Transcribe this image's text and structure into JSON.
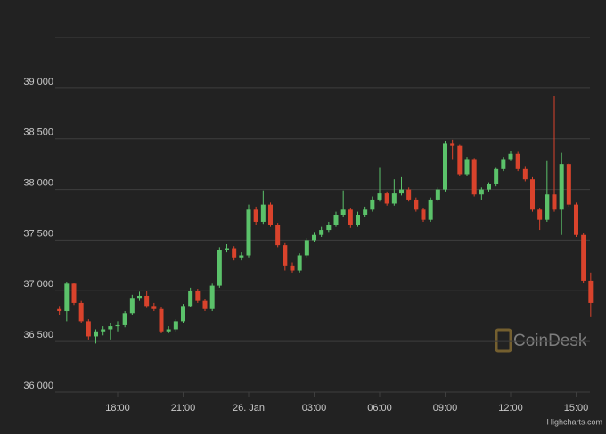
{
  "chart_data": {
    "type": "candlestick",
    "x": [
      "25. Jan 15:20",
      "25. Jan 15:40",
      "25. Jan 16:00",
      "25. Jan 16:20",
      "25. Jan 16:40",
      "25. Jan 17:00",
      "25. Jan 17:20",
      "25. Jan 17:40",
      "25. Jan 18:00",
      "25. Jan 18:20",
      "25. Jan 18:40",
      "25. Jan 19:00",
      "25. Jan 19:20",
      "25. Jan 19:40",
      "25. Jan 20:00",
      "25. Jan 20:20",
      "25. Jan 20:40",
      "25. Jan 21:00",
      "25. Jan 21:20",
      "25. Jan 21:40",
      "25. Jan 22:00",
      "25. Jan 22:20",
      "25. Jan 22:40",
      "25. Jan 23:00",
      "25. Jan 23:20",
      "25. Jan 23:40",
      "26. Jan 00:00",
      "26. Jan 00:20",
      "26. Jan 00:40",
      "26. Jan 01:00",
      "26. Jan 01:20",
      "26. Jan 01:40",
      "26. Jan 02:00",
      "26. Jan 02:20",
      "26. Jan 02:40",
      "26. Jan 03:00",
      "26. Jan 03:20",
      "26. Jan 03:40",
      "26. Jan 04:00",
      "26. Jan 04:20",
      "26. Jan 04:40",
      "26. Jan 05:00",
      "26. Jan 05:20",
      "26. Jan 05:40",
      "26. Jan 06:00",
      "26. Jan 06:20",
      "26. Jan 06:40",
      "26. Jan 07:00",
      "26. Jan 07:20",
      "26. Jan 07:40",
      "26. Jan 08:00",
      "26. Jan 08:20",
      "26. Jan 08:40",
      "26. Jan 09:00",
      "26. Jan 09:20",
      "26. Jan 09:40",
      "26. Jan 10:00",
      "26. Jan 10:20",
      "26. Jan 10:40",
      "26. Jan 11:00",
      "26. Jan 11:20",
      "26. Jan 11:40",
      "26. Jan 12:00",
      "26. Jan 12:20",
      "26. Jan 12:40",
      "26. Jan 13:00",
      "26. Jan 13:20",
      "26. Jan 13:40",
      "26. Jan 14:00",
      "26. Jan 14:20",
      "26. Jan 14:40",
      "26. Jan 15:00",
      "26. Jan 15:20",
      "26. Jan 15:40"
    ],
    "ohlc": [
      [
        36820,
        36850,
        36760,
        36800
      ],
      [
        36800,
        37090,
        36700,
        37070
      ],
      [
        37070,
        37080,
        36860,
        36880
      ],
      [
        36880,
        36900,
        36680,
        36700
      ],
      [
        36700,
        36720,
        36520,
        36550
      ],
      [
        36550,
        36620,
        36480,
        36600
      ],
      [
        36600,
        36650,
        36560,
        36620
      ],
      [
        36620,
        36680,
        36520,
        36650
      ],
      [
        36650,
        36700,
        36600,
        36660
      ],
      [
        36660,
        36800,
        36640,
        36780
      ],
      [
        36780,
        36960,
        36760,
        36930
      ],
      [
        36930,
        36990,
        36900,
        36950
      ],
      [
        36950,
        37000,
        36830,
        36850
      ],
      [
        36850,
        36880,
        36800,
        36820
      ],
      [
        36820,
        36840,
        36580,
        36600
      ],
      [
        36600,
        36650,
        36580,
        36620
      ],
      [
        36620,
        36720,
        36600,
        36700
      ],
      [
        36700,
        36870,
        36680,
        36850
      ],
      [
        36850,
        37030,
        36840,
        37000
      ],
      [
        37000,
        37020,
        36880,
        36900
      ],
      [
        36900,
        36920,
        36800,
        36820
      ],
      [
        36820,
        37070,
        36800,
        37050
      ],
      [
        37050,
        37430,
        37030,
        37400
      ],
      [
        37400,
        37460,
        37380,
        37420
      ],
      [
        37420,
        37440,
        37300,
        37330
      ],
      [
        37330,
        37380,
        37300,
        37350
      ],
      [
        37350,
        37850,
        37330,
        37800
      ],
      [
        37800,
        37830,
        37650,
        37680
      ],
      [
        37680,
        37990,
        37660,
        37850
      ],
      [
        37850,
        37870,
        37630,
        37650
      ],
      [
        37650,
        37670,
        37430,
        37450
      ],
      [
        37450,
        37470,
        37200,
        37250
      ],
      [
        37250,
        37280,
        37180,
        37200
      ],
      [
        37200,
        37370,
        37180,
        37350
      ],
      [
        37350,
        37520,
        37330,
        37500
      ],
      [
        37500,
        37580,
        37480,
        37550
      ],
      [
        37550,
        37630,
        37530,
        37600
      ],
      [
        37600,
        37680,
        37580,
        37650
      ],
      [
        37650,
        37780,
        37630,
        37750
      ],
      [
        37750,
        37990,
        37730,
        37800
      ],
      [
        37800,
        37820,
        37620,
        37650
      ],
      [
        37650,
        37780,
        37630,
        37750
      ],
      [
        37750,
        37830,
        37730,
        37800
      ],
      [
        37800,
        37930,
        37780,
        37900
      ],
      [
        37900,
        38220,
        37880,
        37960
      ],
      [
        37960,
        37980,
        37840,
        37860
      ],
      [
        37860,
        38100,
        37840,
        37960
      ],
      [
        37960,
        38120,
        37940,
        38000
      ],
      [
        38000,
        38020,
        37880,
        37900
      ],
      [
        37900,
        37920,
        37780,
        37800
      ],
      [
        37800,
        37820,
        37680,
        37700
      ],
      [
        37700,
        37920,
        37680,
        37900
      ],
      [
        37900,
        38020,
        37880,
        38000
      ],
      [
        38000,
        38480,
        37980,
        38450
      ],
      [
        38450,
        38490,
        38300,
        38430
      ],
      [
        38430,
        38440,
        38130,
        38150
      ],
      [
        38150,
        38320,
        38130,
        38300
      ],
      [
        38300,
        38310,
        37930,
        37950
      ],
      [
        37950,
        38020,
        37900,
        38000
      ],
      [
        38000,
        38070,
        37980,
        38050
      ],
      [
        38050,
        38220,
        38030,
        38200
      ],
      [
        38200,
        38320,
        38180,
        38300
      ],
      [
        38300,
        38380,
        38280,
        38350
      ],
      [
        38350,
        38370,
        38180,
        38200
      ],
      [
        38200,
        38230,
        38080,
        38100
      ],
      [
        38100,
        38120,
        37780,
        37800
      ],
      [
        37800,
        37820,
        37600,
        37700
      ],
      [
        37700,
        38280,
        37680,
        37950
      ],
      [
        37950,
        38920,
        37780,
        37800
      ],
      [
        37800,
        38360,
        37550,
        38250
      ],
      [
        38250,
        38260,
        37830,
        37850
      ],
      [
        37850,
        37870,
        37530,
        37550
      ],
      [
        37550,
        37570,
        37080,
        37100
      ],
      [
        37100,
        37180,
        36740,
        36880
      ]
    ],
    "up_color": "#5bc26a",
    "down_color": "#d9432c",
    "ylim": [
      36000,
      39500
    ],
    "yticks": [
      {
        "value": 36000,
        "label": "36 000"
      },
      {
        "value": 36500,
        "label": "36 500"
      },
      {
        "value": 37000,
        "label": "37 000"
      },
      {
        "value": 37500,
        "label": "37 500"
      },
      {
        "value": 38000,
        "label": "38 000"
      },
      {
        "value": 38500,
        "label": "38 500"
      },
      {
        "value": 39000,
        "label": "39 000"
      },
      {
        "value": 39500,
        "label": ""
      }
    ],
    "xticks": [
      {
        "value": "25. Jan 18:00",
        "label": "18:00"
      },
      {
        "value": "25. Jan 21:00",
        "label": "21:00"
      },
      {
        "value": "26. Jan 00:00",
        "label": "26. Jan"
      },
      {
        "value": "26. Jan 03:00",
        "label": "03:00"
      },
      {
        "value": "26. Jan 06:00",
        "label": "06:00"
      },
      {
        "value": "26. Jan 09:00",
        "label": "09:00"
      },
      {
        "value": "26. Jan 12:00",
        "label": "12:00"
      },
      {
        "value": "26. Jan 15:00",
        "label": "15:00"
      }
    ],
    "grid": true,
    "watermark": "CoinDesk",
    "credits": "Highcharts.com"
  }
}
